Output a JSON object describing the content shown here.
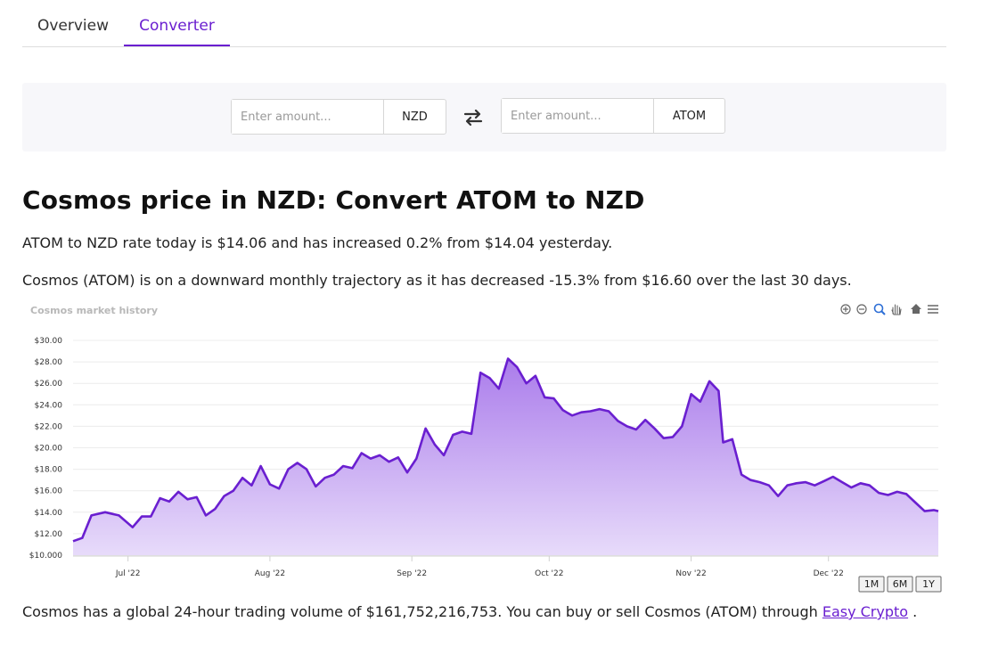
{
  "tabs": [
    {
      "label": "Overview",
      "active": false
    },
    {
      "label": "Converter",
      "active": true
    }
  ],
  "converter": {
    "from": {
      "placeholder": "Enter amount...",
      "value": "",
      "currency": "NZD"
    },
    "to": {
      "placeholder": "Enter amount...",
      "value": "",
      "currency": "ATOM"
    },
    "swap_icon": "swap-arrows-icon"
  },
  "heading": "Cosmos price in NZD: Convert ATOM to NZD",
  "summary_1": "ATOM to NZD rate today is $14.06 and has increased 0.2% from $14.04 yesterday.",
  "summary_2": "Cosmos (ATOM) is on a downward monthly trajectory as it has decreased -15.3% from $16.60 over the last 30 days.",
  "colors": {
    "accent": "#6a1fd0",
    "area_top": "#a675ea",
    "area_bottom": "#e6d9fa"
  },
  "chart_toolbar": [
    "zoom-in-icon",
    "zoom-out-icon",
    "zoom-select-icon",
    "pan-hand-icon",
    "reset-home-icon",
    "menu-icon"
  ],
  "chart_data": {
    "type": "area",
    "title": "Cosmos market history",
    "xlabel": "",
    "ylabel": "",
    "ylim": [
      10,
      30
    ],
    "y_ticks": [
      "$10.000",
      "$12.00",
      "$14.00",
      "$16.00",
      "$18.00",
      "$20.00",
      "$22.00",
      "$24.00",
      "$26.00",
      "$28.00",
      "$30.00"
    ],
    "x_ticks": [
      {
        "label": "Jul '22",
        "date": "2022-07-01"
      },
      {
        "label": "Aug '22",
        "date": "2022-08-01"
      },
      {
        "label": "Sep '22",
        "date": "2022-09-01"
      },
      {
        "label": "Oct '22",
        "date": "2022-10-01"
      },
      {
        "label": "Nov '22",
        "date": "2022-11-01"
      },
      {
        "label": "Dec '22",
        "date": "2022-12-01"
      }
    ],
    "grid": true,
    "range_buttons": [
      "1M",
      "6M",
      "1Y"
    ],
    "series": [
      {
        "points": [
          [
            "2022-06-19",
            11.3
          ],
          [
            "2022-06-21",
            11.6
          ],
          [
            "2022-06-23",
            13.7
          ],
          [
            "2022-06-26",
            14.0
          ],
          [
            "2022-06-29",
            13.7
          ],
          [
            "2022-07-02",
            12.6
          ],
          [
            "2022-07-04",
            13.6
          ],
          [
            "2022-07-06",
            13.6
          ],
          [
            "2022-07-08",
            15.3
          ],
          [
            "2022-07-10",
            15.0
          ],
          [
            "2022-07-12",
            15.9
          ],
          [
            "2022-07-14",
            15.2
          ],
          [
            "2022-07-16",
            15.4
          ],
          [
            "2022-07-18",
            13.7
          ],
          [
            "2022-07-20",
            14.3
          ],
          [
            "2022-07-22",
            15.5
          ],
          [
            "2022-07-24",
            16.0
          ],
          [
            "2022-07-26",
            17.2
          ],
          [
            "2022-07-28",
            16.5
          ],
          [
            "2022-07-30",
            18.3
          ],
          [
            "2022-08-01",
            16.6
          ],
          [
            "2022-08-03",
            16.2
          ],
          [
            "2022-08-05",
            18.0
          ],
          [
            "2022-08-07",
            18.6
          ],
          [
            "2022-08-09",
            18.0
          ],
          [
            "2022-08-11",
            16.4
          ],
          [
            "2022-08-13",
            17.2
          ],
          [
            "2022-08-15",
            17.5
          ],
          [
            "2022-08-17",
            18.3
          ],
          [
            "2022-08-19",
            18.1
          ],
          [
            "2022-08-21",
            19.5
          ],
          [
            "2022-08-23",
            19.0
          ],
          [
            "2022-08-25",
            19.3
          ],
          [
            "2022-08-27",
            18.7
          ],
          [
            "2022-08-29",
            19.1
          ],
          [
            "2022-08-31",
            17.7
          ],
          [
            "2022-09-02",
            19.0
          ],
          [
            "2022-09-04",
            21.8
          ],
          [
            "2022-09-06",
            20.3
          ],
          [
            "2022-09-08",
            19.3
          ],
          [
            "2022-09-10",
            21.2
          ],
          [
            "2022-09-12",
            21.5
          ],
          [
            "2022-09-14",
            21.3
          ],
          [
            "2022-09-16",
            27.0
          ],
          [
            "2022-09-18",
            26.5
          ],
          [
            "2022-09-20",
            25.5
          ],
          [
            "2022-09-22",
            28.3
          ],
          [
            "2022-09-24",
            27.5
          ],
          [
            "2022-09-26",
            26.0
          ],
          [
            "2022-09-28",
            26.7
          ],
          [
            "2022-09-30",
            24.7
          ],
          [
            "2022-10-02",
            24.6
          ],
          [
            "2022-10-04",
            23.5
          ],
          [
            "2022-10-06",
            23.0
          ],
          [
            "2022-10-08",
            23.3
          ],
          [
            "2022-10-10",
            23.4
          ],
          [
            "2022-10-12",
            23.6
          ],
          [
            "2022-10-14",
            23.4
          ],
          [
            "2022-10-16",
            22.5
          ],
          [
            "2022-10-18",
            22.0
          ],
          [
            "2022-10-20",
            21.7
          ],
          [
            "2022-10-22",
            22.6
          ],
          [
            "2022-10-24",
            21.8
          ],
          [
            "2022-10-26",
            20.9
          ],
          [
            "2022-10-28",
            21.0
          ],
          [
            "2022-10-30",
            22.0
          ],
          [
            "2022-11-01",
            25.0
          ],
          [
            "2022-11-03",
            24.3
          ],
          [
            "2022-11-05",
            26.2
          ],
          [
            "2022-11-07",
            25.3
          ],
          [
            "2022-11-08",
            20.5
          ],
          [
            "2022-11-10",
            20.8
          ],
          [
            "2022-11-12",
            17.5
          ],
          [
            "2022-11-14",
            17.0
          ],
          [
            "2022-11-16",
            16.8
          ],
          [
            "2022-11-18",
            16.5
          ],
          [
            "2022-11-20",
            15.5
          ],
          [
            "2022-11-22",
            16.5
          ],
          [
            "2022-11-24",
            16.7
          ],
          [
            "2022-11-26",
            16.8
          ],
          [
            "2022-11-28",
            16.5
          ],
          [
            "2022-11-30",
            16.9
          ],
          [
            "2022-12-02",
            17.3
          ],
          [
            "2022-12-04",
            16.8
          ],
          [
            "2022-12-06",
            16.3
          ],
          [
            "2022-12-08",
            16.7
          ],
          [
            "2022-12-10",
            16.5
          ],
          [
            "2022-12-12",
            15.8
          ],
          [
            "2022-12-14",
            15.6
          ],
          [
            "2022-12-16",
            15.9
          ],
          [
            "2022-12-18",
            15.7
          ],
          [
            "2022-12-20",
            14.9
          ],
          [
            "2022-12-22",
            14.1
          ],
          [
            "2022-12-24",
            14.2
          ],
          [
            "2022-12-25",
            14.1
          ]
        ]
      }
    ]
  },
  "footer": {
    "text": "Cosmos has a global 24-hour trading volume of $161,752,216,753. You can buy or sell Cosmos (ATOM) through ",
    "link": "Easy Crypto",
    "suffix": " ."
  }
}
